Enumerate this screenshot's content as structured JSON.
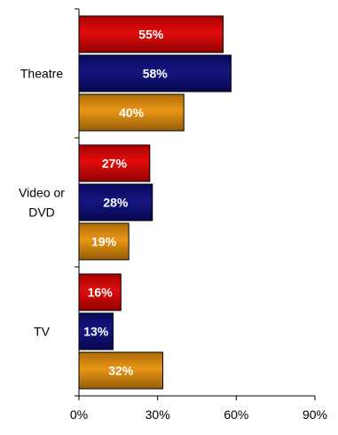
{
  "chart_data": {
    "type": "bar",
    "orientation": "horizontal",
    "categories": [
      {
        "lines": [
          "Theatre"
        ]
      },
      {
        "lines": [
          "Video or",
          "DVD"
        ]
      },
      {
        "lines": [
          "TV"
        ]
      }
    ],
    "series": [
      {
        "values": [
          55,
          27,
          16
        ],
        "labels": [
          "55%",
          "27%",
          "16%"
        ],
        "color": "#e00000"
      },
      {
        "values": [
          58,
          28,
          13
        ],
        "labels": [
          "58%",
          "28%",
          "13%"
        ],
        "color": "#0a0a7a"
      },
      {
        "values": [
          40,
          19,
          32
        ],
        "labels": [
          "40%",
          "19%",
          "32%"
        ],
        "color": "#e8900a"
      }
    ],
    "xlim": [
      0,
      90
    ],
    "xticks": [
      0,
      30,
      60,
      90
    ],
    "xtick_labels": [
      "0%",
      "30%",
      "60%",
      "90%"
    ],
    "grid": false,
    "legend": "none"
  }
}
